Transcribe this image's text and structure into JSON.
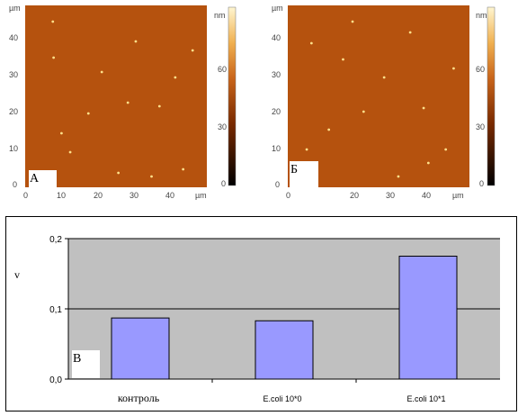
{
  "afm_panels": [
    {
      "tag": "А",
      "x_ticks": [
        "0",
        "10",
        "20",
        "30",
        "40"
      ],
      "y_ticks": [
        "0",
        "10",
        "20",
        "30",
        "40"
      ],
      "x_unit": "µm",
      "y_unit": "µm",
      "colorbar_unit": "nm",
      "colorbar_ticks": [
        "0",
        "30",
        "60"
      ]
    },
    {
      "tag": "Б",
      "x_ticks": [
        "0",
        "20",
        "30",
        "40"
      ],
      "y_ticks": [
        "0",
        "10",
        "20",
        "30",
        "40"
      ],
      "x_unit": "µm",
      "y_unit": "µm",
      "colorbar_unit": "nm",
      "colorbar_ticks": [
        "0",
        "30",
        "60"
      ]
    }
  ],
  "colors": {
    "afm_surface": "#b5520e",
    "afm_particle": "#ffe08a",
    "plot_area": "#c0c0c0",
    "bar_fill": "#9999ff",
    "bar_stroke": "#000000"
  },
  "chart_data": {
    "type": "bar",
    "tag": "В",
    "categories": [
      "контроль",
      "E.coli 10*0",
      "E.coli 10*1"
    ],
    "values": [
      0.087,
      0.083,
      0.175
    ],
    "ylabel": "v",
    "ylim": [
      0,
      0.2
    ],
    "yticks": [
      "0,0",
      "0,1",
      "0,2"
    ],
    "ytick_values": [
      0,
      0.1,
      0.2
    ],
    "grid": true,
    "legend": "none"
  }
}
